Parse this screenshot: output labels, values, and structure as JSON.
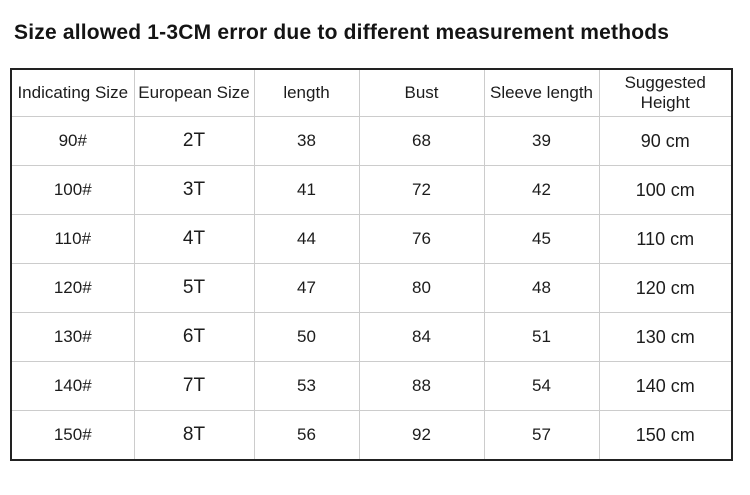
{
  "title": "Size allowed 1-3CM error due to different measurement methods",
  "size_table": {
    "columns": [
      "Indicating Size",
      "European Size",
      "length",
      "Bust",
      "Sleeve length",
      "Suggested Height"
    ],
    "rows": [
      [
        "90#",
        "2T",
        "38",
        "68",
        "39",
        "90 cm"
      ],
      [
        "100#",
        "3T",
        "41",
        "72",
        "42",
        "100 cm"
      ],
      [
        "110#",
        "4T",
        "44",
        "76",
        "45",
        "110 cm"
      ],
      [
        "120#",
        "5T",
        "47",
        "80",
        "48",
        "120 cm"
      ],
      [
        "130#",
        "6T",
        "50",
        "84",
        "51",
        "130 cm"
      ],
      [
        "140#",
        "7T",
        "53",
        "88",
        "54",
        "140 cm"
      ],
      [
        "150#",
        "8T",
        "56",
        "92",
        "57",
        "150 cm"
      ]
    ]
  },
  "colors": {
    "background": "#ffffff",
    "text": "#1c1c1c",
    "outer_border": "#222222",
    "inner_gridline": "#cccccc"
  }
}
